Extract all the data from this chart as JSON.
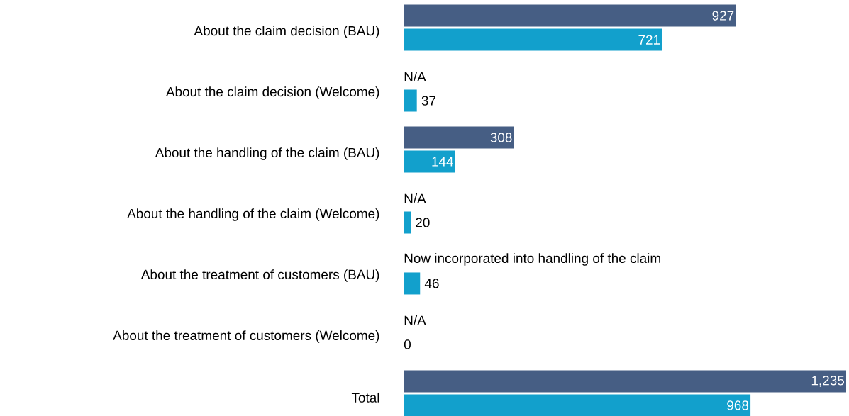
{
  "chart_data": {
    "type": "bar",
    "orientation": "horizontal",
    "tick_labels": "y",
    "xlim": [
      0,
      1235
    ],
    "categories": [
      "About the claim decision (BAU)",
      "About the claim decision (Welcome)",
      "About the handling of the claim (BAU)",
      "About the handling of the claim (Welcome)",
      "About the treatment of customers (BAU)",
      "About the treatment of customers (Welcome)",
      "Total"
    ],
    "series": [
      {
        "color": "#465e84",
        "values": [
          927,
          null,
          308,
          null,
          null,
          null,
          1235
        ],
        "value_labels": [
          "927",
          "N/A",
          "308",
          "N/A",
          "Now incorporated into handling of the claim",
          "N/A",
          "1,235"
        ]
      },
      {
        "color": "#12a0cc",
        "values": [
          721,
          37,
          144,
          20,
          46,
          0,
          968
        ],
        "value_labels": [
          "721",
          "37",
          "144",
          "20",
          "46",
          "0",
          "968"
        ]
      }
    ]
  }
}
